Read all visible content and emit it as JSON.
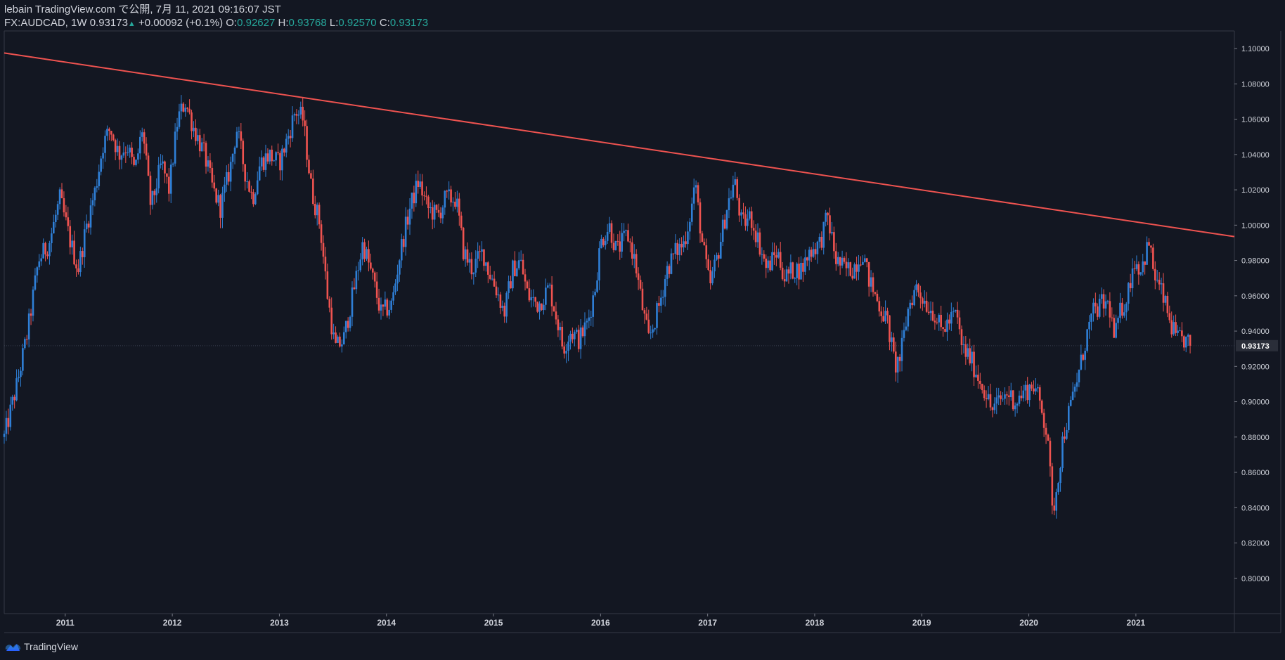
{
  "header": {
    "published_line": "lebain TradingView.com で公開, 7月 11, 2021 09:16:07 JST",
    "symbol": "FX:AUDCAD, 1W",
    "last": "0.93173",
    "change": "+0.00092 (+0.1%)",
    "o_label": "O:",
    "o_value": "0.92627",
    "h_label": "H:",
    "h_value": "0.93768",
    "l_label": "L:",
    "l_value": "0.92570",
    "c_label": "C:",
    "c_value": "0.93173"
  },
  "footer": {
    "brand": "TradingView"
  },
  "chart_data": {
    "type": "candlestick",
    "symbol": "FX:AUDCAD",
    "interval": "1W",
    "ylim": [
      0.78,
      1.11
    ],
    "y_ticks": [
      0.8,
      0.82,
      0.84,
      0.86,
      0.88,
      0.9,
      0.92,
      0.94,
      0.96,
      0.98,
      1.0,
      1.02,
      1.04,
      1.06,
      1.08,
      1.1
    ],
    "y_tick_labels": [
      "0.80000",
      "0.82000",
      "0.84000",
      "0.86000",
      "0.88000",
      "0.90000",
      "0.92000",
      "0.94000",
      "0.96000",
      "0.98000",
      "1.00000",
      "1.02000",
      "1.04000",
      "1.06000",
      "1.08000",
      "1.10000"
    ],
    "x_range": [
      2010.43,
      2021.92
    ],
    "x_ticks": [
      2011,
      2012,
      2013,
      2014,
      2015,
      2016,
      2017,
      2018,
      2019,
      2020,
      2021
    ],
    "x_tick_labels": [
      "2011",
      "2012",
      "2013",
      "2014",
      "2015",
      "2016",
      "2017",
      "2018",
      "2019",
      "2020",
      "2021"
    ],
    "current_price": 0.93173,
    "current_price_label": "0.93173",
    "colors": {
      "background": "#131722",
      "up": "#2f7fd6",
      "down": "#ef5350",
      "trendline": "#ef5350",
      "text": "#d1d4dc",
      "axis": "#363a45",
      "teal": "#26a69a"
    },
    "trendline": {
      "start": [
        2010.43,
        1.0975
      ],
      "end": [
        2021.92,
        0.9935
      ]
    },
    "price_path": [
      [
        2010.43,
        0.88
      ],
      [
        2010.55,
        0.91
      ],
      [
        2010.65,
        0.94
      ],
      [
        2010.75,
        0.98
      ],
      [
        2010.85,
        0.99
      ],
      [
        2010.95,
        1.015
      ],
      [
        2011.05,
        0.99
      ],
      [
        2011.12,
        0.975
      ],
      [
        2011.2,
        1.0
      ],
      [
        2011.28,
        1.02
      ],
      [
        2011.35,
        1.045
      ],
      [
        2011.42,
        1.055
      ],
      [
        2011.5,
        1.04
      ],
      [
        2011.58,
        1.045
      ],
      [
        2011.65,
        1.03
      ],
      [
        2011.72,
        1.055
      ],
      [
        2011.8,
        1.01
      ],
      [
        2011.9,
        1.035
      ],
      [
        2011.97,
        1.02
      ],
      [
        2012.05,
        1.06
      ],
      [
        2012.12,
        1.07
      ],
      [
        2012.2,
        1.055
      ],
      [
        2012.3,
        1.04
      ],
      [
        2012.38,
        1.02
      ],
      [
        2012.45,
        1.01
      ],
      [
        2012.55,
        1.035
      ],
      [
        2012.6,
        1.055
      ],
      [
        2012.68,
        1.03
      ],
      [
        2012.75,
        1.015
      ],
      [
        2012.82,
        1.035
      ],
      [
        2012.9,
        1.04
      ],
      [
        2013.0,
        1.035
      ],
      [
        2013.08,
        1.05
      ],
      [
        2013.15,
        1.065
      ],
      [
        2013.22,
        1.06
      ],
      [
        2013.3,
        1.02
      ],
      [
        2013.38,
        1.0
      ],
      [
        2013.45,
        0.96
      ],
      [
        2013.52,
        0.93
      ],
      [
        2013.6,
        0.935
      ],
      [
        2013.7,
        0.965
      ],
      [
        2013.78,
        0.99
      ],
      [
        2013.87,
        0.97
      ],
      [
        2013.95,
        0.95
      ],
      [
        2014.05,
        0.955
      ],
      [
        2014.13,
        0.985
      ],
      [
        2014.22,
        1.01
      ],
      [
        2014.3,
        1.025
      ],
      [
        2014.38,
        1.01
      ],
      [
        2014.48,
        1.005
      ],
      [
        2014.55,
        1.015
      ],
      [
        2014.65,
        1.015
      ],
      [
        2014.72,
        0.985
      ],
      [
        2014.8,
        0.975
      ],
      [
        2014.9,
        0.985
      ],
      [
        2014.95,
        0.975
      ],
      [
        2015.05,
        0.96
      ],
      [
        2015.1,
        0.95
      ],
      [
        2015.18,
        0.975
      ],
      [
        2015.25,
        0.98
      ],
      [
        2015.32,
        0.96
      ],
      [
        2015.42,
        0.955
      ],
      [
        2015.52,
        0.965
      ],
      [
        2015.6,
        0.945
      ],
      [
        2015.65,
        0.93
      ],
      [
        2015.72,
        0.94
      ],
      [
        2015.8,
        0.935
      ],
      [
        2015.88,
        0.945
      ],
      [
        2015.95,
        0.965
      ],
      [
        2016.0,
        0.99
      ],
      [
        2016.08,
        1.0
      ],
      [
        2016.15,
        0.985
      ],
      [
        2016.25,
        0.995
      ],
      [
        2016.32,
        0.98
      ],
      [
        2016.4,
        0.95
      ],
      [
        2016.45,
        0.935
      ],
      [
        2016.55,
        0.955
      ],
      [
        2016.62,
        0.975
      ],
      [
        2016.7,
        0.985
      ],
      [
        2016.78,
        0.99
      ],
      [
        2016.85,
        1.01
      ],
      [
        2016.88,
        1.025
      ],
      [
        2016.95,
        0.99
      ],
      [
        2017.02,
        0.965
      ],
      [
        2017.1,
        0.985
      ],
      [
        2017.18,
        1.01
      ],
      [
        2017.25,
        1.025
      ],
      [
        2017.32,
        1.0
      ],
      [
        2017.4,
        1.005
      ],
      [
        2017.48,
        0.99
      ],
      [
        2017.55,
        0.975
      ],
      [
        2017.65,
        0.985
      ],
      [
        2017.72,
        0.97
      ],
      [
        2017.8,
        0.975
      ],
      [
        2017.88,
        0.975
      ],
      [
        2017.95,
        0.985
      ],
      [
        2018.05,
        0.99
      ],
      [
        2018.12,
        1.005
      ],
      [
        2018.2,
        0.98
      ],
      [
        2018.28,
        0.975
      ],
      [
        2018.35,
        0.975
      ],
      [
        2018.45,
        0.985
      ],
      [
        2018.5,
        0.97
      ],
      [
        2018.6,
        0.955
      ],
      [
        2018.68,
        0.945
      ],
      [
        2018.75,
        0.92
      ],
      [
        2018.8,
        0.925
      ],
      [
        2018.88,
        0.955
      ],
      [
        2018.95,
        0.965
      ],
      [
        2019.05,
        0.955
      ],
      [
        2019.12,
        0.95
      ],
      [
        2019.18,
        0.94
      ],
      [
        2019.25,
        0.945
      ],
      [
        2019.32,
        0.95
      ],
      [
        2019.38,
        0.93
      ],
      [
        2019.45,
        0.925
      ],
      [
        2019.52,
        0.915
      ],
      [
        2019.6,
        0.905
      ],
      [
        2019.65,
        0.895
      ],
      [
        2019.72,
        0.9
      ],
      [
        2019.8,
        0.905
      ],
      [
        2019.88,
        0.9
      ],
      [
        2019.95,
        0.905
      ],
      [
        2020.05,
        0.91
      ],
      [
        2020.12,
        0.895
      ],
      [
        2020.18,
        0.88
      ],
      [
        2020.22,
        0.835
      ],
      [
        2020.28,
        0.86
      ],
      [
        2020.32,
        0.88
      ],
      [
        2020.4,
        0.9
      ],
      [
        2020.48,
        0.92
      ],
      [
        2020.55,
        0.94
      ],
      [
        2020.6,
        0.95
      ],
      [
        2020.68,
        0.955
      ],
      [
        2020.75,
        0.955
      ],
      [
        2020.8,
        0.935
      ],
      [
        2020.85,
        0.95
      ],
      [
        2020.92,
        0.96
      ],
      [
        2020.98,
        0.98
      ],
      [
        2021.05,
        0.975
      ],
      [
        2021.12,
        0.99
      ],
      [
        2021.18,
        0.97
      ],
      [
        2021.25,
        0.96
      ],
      [
        2021.32,
        0.945
      ],
      [
        2021.38,
        0.935
      ],
      [
        2021.45,
        0.935
      ],
      [
        2021.52,
        0.9317
      ]
    ]
  }
}
